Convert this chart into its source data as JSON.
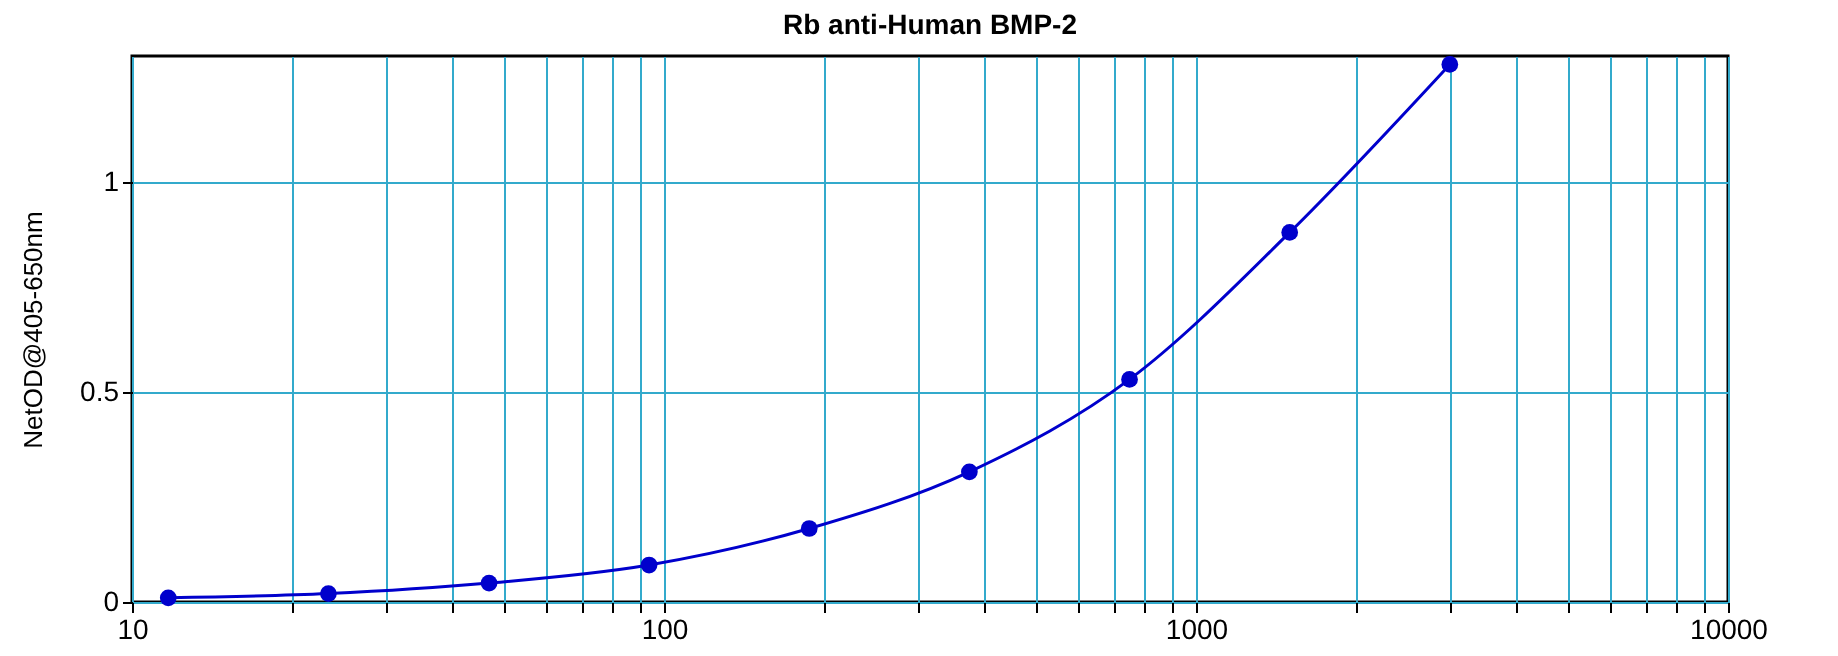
{
  "chart_data": {
    "type": "line",
    "title": "Rb anti-Human BMP-2",
    "ylabel": "NetOD@405-650nm",
    "x": [
      11.7,
      23.4,
      46.9,
      93.75,
      187.5,
      375,
      750,
      1500,
      3000
    ],
    "series": [
      {
        "color": "#0000cc",
        "values": [
          0.01,
          0.02,
          0.045,
          0.088,
          0.175,
          0.31,
          0.53,
          0.88,
          1.28
        ]
      }
    ],
    "xlim": [
      10,
      10000
    ],
    "xticks": [
      10,
      {
        "value": 20,
        "label": null
      },
      {
        "value": 30,
        "label": null
      },
      {
        "value": 40,
        "label": null
      },
      {
        "value": 50,
        "label": null
      },
      {
        "value": 60,
        "label": null
      },
      {
        "value": 70,
        "label": null
      },
      {
        "value": 80,
        "label": null
      },
      {
        "value": 90,
        "label": null
      },
      100,
      {
        "value": 200,
        "label": null
      },
      {
        "value": 300,
        "label": null
      },
      {
        "value": 400,
        "label": null
      },
      {
        "value": 500,
        "label": null
      },
      {
        "value": 600,
        "label": null
      },
      {
        "value": 700,
        "label": null
      },
      {
        "value": 800,
        "label": null
      },
      {
        "value": 900,
        "label": null
      },
      1000,
      {
        "value": 2000,
        "label": null
      },
      {
        "value": 3000,
        "label": null
      },
      {
        "value": 4000,
        "label": null
      },
      {
        "value": 5000,
        "label": null
      },
      {
        "value": 6000,
        "label": null
      },
      {
        "value": 7000,
        "label": null
      },
      {
        "value": 8000,
        "label": null
      },
      {
        "value": 9000,
        "label": null
      },
      10000
    ],
    "ylim": [
      0,
      1.3
    ],
    "yticks": [
      0,
      0.5,
      1
    ],
    "log": "x",
    "grid": true,
    "marker": "circle",
    "line_style": "solid"
  }
}
